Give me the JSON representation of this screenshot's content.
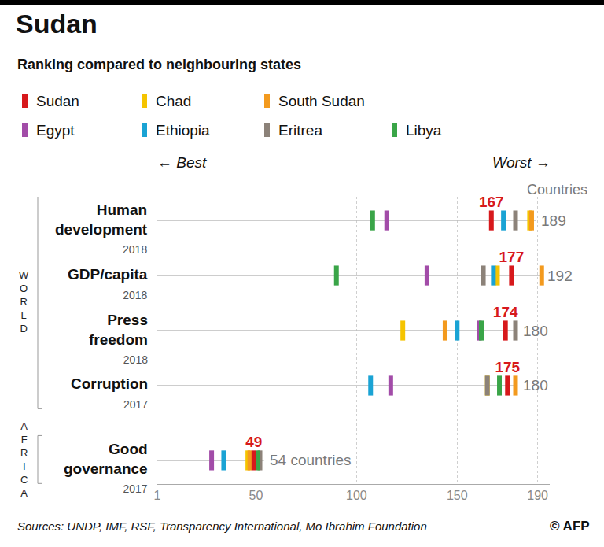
{
  "chart_data": {
    "type": "dot",
    "title": "Sudan",
    "subtitle": "Ranking compared to neighbouring states",
    "best_label": "← Best",
    "worst_label": "Worst →",
    "count_header": "Countries",
    "source": "Sources: UNDP, IMF, RSF, Transparency International, Mo Ibrahim Foundation",
    "credit": "© AFP",
    "categories": [
      "Human development",
      "GDP/capita",
      "Press freedom",
      "Corruption",
      "Good governance"
    ],
    "years": [
      "2018",
      "2018",
      "2018",
      "2017",
      "2017"
    ],
    "groups": [
      "WORLD",
      "WORLD",
      "WORLD",
      "WORLD",
      "AFRICA"
    ],
    "totals": [
      189,
      192,
      180,
      180,
      54
    ],
    "total_labels": [
      "189",
      "192",
      "180",
      "180",
      "54 countries"
    ],
    "xlim": [
      1,
      196
    ],
    "xticks": [
      1,
      50,
      100,
      150,
      190
    ],
    "grid": true,
    "tick_labels": "x",
    "marker": "line-ns",
    "series": [
      {
        "name": "Sudan",
        "color": "#d7191c",
        "values": [
          167,
          177,
          174,
          175,
          49
        ],
        "data_labels": true
      },
      {
        "name": "Chad",
        "color": "#f5c400",
        "values": [
          186,
          170,
          123,
          165,
          46
        ]
      },
      {
        "name": "South Sudan",
        "color": "#f39a1e",
        "values": [
          187,
          192,
          144,
          179,
          47
        ]
      },
      {
        "name": "Egypt",
        "color": "#a24ca8",
        "values": [
          115,
          135,
          161,
          117,
          28
        ]
      },
      {
        "name": "Ethiopia",
        "color": "#1aa3d4",
        "values": [
          173,
          168,
          150,
          107,
          34
        ]
      },
      {
        "name": "Eritrea",
        "color": "#8c8279",
        "values": [
          179,
          163,
          179,
          165,
          52
        ]
      },
      {
        "name": "Libya",
        "color": "#3aa548",
        "values": [
          108,
          90,
          162,
          171,
          51
        ]
      }
    ]
  }
}
